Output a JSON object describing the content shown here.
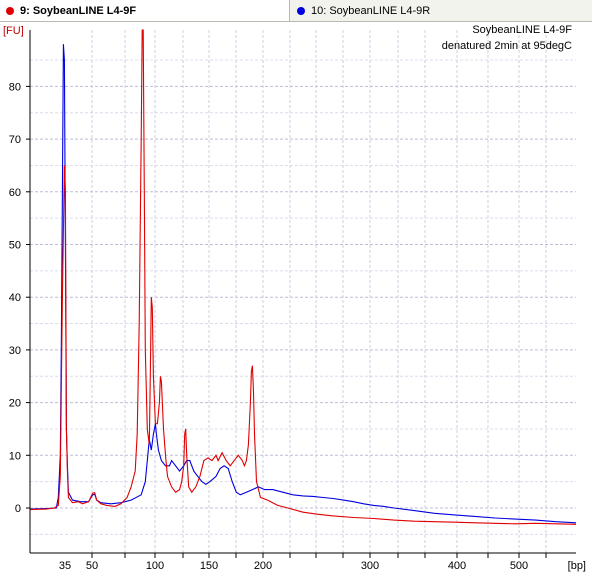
{
  "tabs": [
    {
      "label": "9: SoybeanLINE L4-9F",
      "color": "#e00000",
      "active": true
    },
    {
      "label": "10: SoybeanLINE L4-9R",
      "color": "#0000e0",
      "active": false
    }
  ],
  "chart_data": {
    "type": "line",
    "title": "SoybeanLINE L4-9F",
    "subtitle": "denatured 2min at 95degC",
    "ylabel": "[FU]",
    "xlabel": "[bp]",
    "ylim": [
      -8,
      90
    ],
    "y_ticks": [
      0,
      10,
      20,
      30,
      40,
      50,
      60,
      70,
      80
    ],
    "x_tick_labels": [
      "35",
      "50",
      "100",
      "150",
      "200",
      "300",
      "400",
      "500"
    ],
    "grid": true,
    "series": [
      {
        "name": "9: SoybeanLINE L4-9F",
        "color": "#e00000",
        "points": [
          [
            0,
            -0.3
          ],
          [
            16,
            -0.2
          ],
          [
            24,
            0.0
          ],
          [
            28,
            0.5
          ],
          [
            30,
            6
          ],
          [
            32,
            40
          ],
          [
            34,
            65
          ],
          [
            35,
            60
          ],
          [
            36,
            15
          ],
          [
            37,
            7
          ],
          [
            38,
            2
          ],
          [
            42,
            1.0
          ],
          [
            48,
            1.2
          ],
          [
            52,
            0.8
          ],
          [
            58,
            1.2
          ],
          [
            62,
            2.8
          ],
          [
            64,
            2.9
          ],
          [
            66,
            1.5
          ],
          [
            70,
            0.8
          ],
          [
            76,
            0.5
          ],
          [
            84,
            0.3
          ],
          [
            90,
            0.8
          ],
          [
            96,
            2
          ],
          [
            100,
            4
          ],
          [
            104,
            7
          ],
          [
            106,
            14
          ],
          [
            108,
            35
          ],
          [
            110,
            70
          ],
          [
            111,
            95
          ],
          [
            112,
            95
          ],
          [
            113,
            60
          ],
          [
            114,
            30
          ],
          [
            116,
            15
          ],
          [
            118,
            12
          ],
          [
            119,
            25
          ],
          [
            120,
            40
          ],
          [
            121,
            38
          ],
          [
            122,
            25
          ],
          [
            124,
            16
          ],
          [
            126,
            16
          ],
          [
            128,
            20
          ],
          [
            129,
            25
          ],
          [
            130,
            24
          ],
          [
            132,
            15
          ],
          [
            134,
            10
          ],
          [
            136,
            6
          ],
          [
            140,
            4
          ],
          [
            144,
            3
          ],
          [
            148,
            3.5
          ],
          [
            150,
            5
          ],
          [
            152,
            8
          ],
          [
            153,
            14
          ],
          [
            154,
            15
          ],
          [
            155,
            10
          ],
          [
            157,
            4
          ],
          [
            160,
            3
          ],
          [
            164,
            4
          ],
          [
            168,
            6
          ],
          [
            172,
            9
          ],
          [
            176,
            9.5
          ],
          [
            180,
            9
          ],
          [
            184,
            10
          ],
          [
            186,
            9
          ],
          [
            190,
            10.5
          ],
          [
            194,
            9
          ],
          [
            198,
            8
          ],
          [
            202,
            9
          ],
          [
            206,
            10
          ],
          [
            210,
            9
          ],
          [
            212,
            8
          ],
          [
            214,
            9
          ],
          [
            216,
            12
          ],
          [
            218,
            20
          ],
          [
            219,
            26
          ],
          [
            220,
            27
          ],
          [
            221,
            22
          ],
          [
            222,
            14
          ],
          [
            224,
            5
          ],
          [
            228,
            2
          ],
          [
            235,
            1.5
          ],
          [
            245,
            0.5
          ],
          [
            255,
            0
          ],
          [
            270,
            -0.8
          ],
          [
            285,
            -1.2
          ],
          [
            300,
            -1.5
          ],
          [
            320,
            -1.8
          ],
          [
            340,
            -2.0
          ],
          [
            360,
            -2.3
          ],
          [
            380,
            -2.5
          ],
          [
            400,
            -2.6
          ],
          [
            420,
            -2.7
          ],
          [
            440,
            -2.8
          ],
          [
            460,
            -2.9
          ],
          [
            480,
            -3.0
          ],
          [
            500,
            -2.9
          ],
          [
            520,
            -3.0
          ],
          [
            540,
            -3.1
          ]
        ]
      },
      {
        "name": "10: SoybeanLINE L4-9R",
        "color": "#0000e0",
        "points": [
          [
            0,
            -0.2
          ],
          [
            16,
            -0.1
          ],
          [
            26,
            0.0
          ],
          [
            28,
            2
          ],
          [
            30,
            10
          ],
          [
            31,
            30
          ],
          [
            32,
            60
          ],
          [
            33,
            88
          ],
          [
            34,
            85
          ],
          [
            35,
            50
          ],
          [
            36,
            15
          ],
          [
            37,
            8
          ],
          [
            38,
            3
          ],
          [
            42,
            1.5
          ],
          [
            50,
            1.2
          ],
          [
            58,
            1.2
          ],
          [
            62,
            2.5
          ],
          [
            64,
            2.6
          ],
          [
            66,
            1.5
          ],
          [
            70,
            1.0
          ],
          [
            80,
            0.8
          ],
          [
            90,
            1.0
          ],
          [
            100,
            1.5
          ],
          [
            110,
            2.5
          ],
          [
            114,
            5
          ],
          [
            116,
            9
          ],
          [
            118,
            13
          ],
          [
            120,
            11
          ],
          [
            122,
            14
          ],
          [
            124,
            16
          ],
          [
            125,
            14
          ],
          [
            127,
            11
          ],
          [
            130,
            9
          ],
          [
            134,
            8
          ],
          [
            138,
            8
          ],
          [
            140,
            9
          ],
          [
            144,
            8
          ],
          [
            148,
            7
          ],
          [
            152,
            8
          ],
          [
            155,
            9
          ],
          [
            158,
            9
          ],
          [
            162,
            7
          ],
          [
            166,
            6
          ],
          [
            170,
            5
          ],
          [
            174,
            4.5
          ],
          [
            178,
            5
          ],
          [
            184,
            6
          ],
          [
            188,
            7.5
          ],
          [
            192,
            8
          ],
          [
            196,
            7.5
          ],
          [
            200,
            5
          ],
          [
            204,
            3
          ],
          [
            208,
            2.5
          ],
          [
            214,
            3
          ],
          [
            220,
            3.5
          ],
          [
            226,
            4
          ],
          [
            232,
            3.5
          ],
          [
            240,
            3.5
          ],
          [
            250,
            3
          ],
          [
            260,
            2.5
          ],
          [
            270,
            2.3
          ],
          [
            280,
            2.2
          ],
          [
            290,
            2.0
          ],
          [
            300,
            1.8
          ],
          [
            310,
            1.5
          ],
          [
            320,
            1.2
          ],
          [
            330,
            0.8
          ],
          [
            340,
            0.5
          ],
          [
            350,
            0.3
          ],
          [
            360,
            0
          ],
          [
            380,
            -0.5
          ],
          [
            400,
            -1.0
          ],
          [
            420,
            -1.3
          ],
          [
            440,
            -1.6
          ],
          [
            460,
            -1.9
          ],
          [
            480,
            -2.1
          ],
          [
            500,
            -2.3
          ],
          [
            520,
            -2.6
          ],
          [
            540,
            -2.8
          ]
        ]
      }
    ]
  }
}
